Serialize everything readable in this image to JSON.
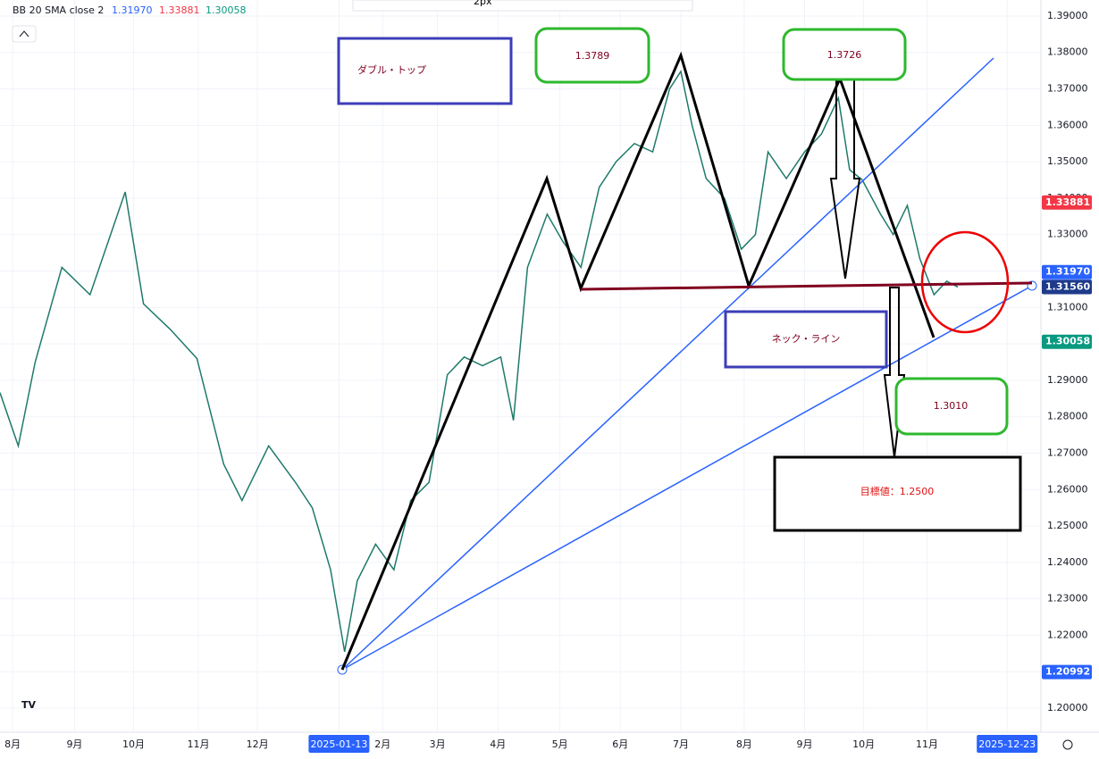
{
  "toolbar": {
    "width_label": "2px"
  },
  "indicator": {
    "name": "BB 20 SMA close 2",
    "middle": "1.31970",
    "upper": "1.33881",
    "lower": "1.30058"
  },
  "chart_data": {
    "type": "line",
    "series": [
      {
        "name": "USDCHF close",
        "color": "#1f7a6a",
        "x": [
          0,
          1.3,
          2.5,
          4.4,
          6.4,
          8.9,
          10.2,
          12.1,
          14,
          15.9,
          17.2,
          19.1,
          21,
          22.2,
          23.5,
          24.5,
          25.4,
          26.7,
          28,
          29.2,
          30.5,
          31.8,
          33,
          34.3,
          35.6,
          36.5,
          37.5,
          38.9,
          40,
          41.3,
          42.6,
          43.8,
          45.1,
          46.4,
          47.6,
          48.4,
          49.2,
          50.2,
          51.5,
          52.7,
          53.7,
          54.6,
          55.9,
          57.2,
          58.4,
          59.6,
          60.4,
          61.3,
          62.6,
          63.5,
          64.5,
          65.4,
          66.4,
          67.3,
          68.1
        ],
        "values": [
          1.2866,
          1.272,
          1.295,
          1.321,
          1.3135,
          1.3417,
          1.311,
          1.304,
          1.296,
          1.267,
          1.257,
          1.272,
          1.262,
          1.255,
          1.238,
          1.2155,
          1.235,
          1.245,
          1.238,
          1.257,
          1.262,
          1.2915,
          1.2964,
          1.294,
          1.2964,
          1.279,
          1.321,
          1.3356,
          1.3282,
          1.321,
          1.343,
          1.35,
          1.355,
          1.3527,
          1.37,
          1.3748,
          1.36,
          1.3454,
          1.34,
          1.326,
          1.33,
          1.3527,
          1.3454,
          1.3527,
          1.3576,
          1.3675,
          1.3478,
          1.345,
          1.3356,
          1.33,
          1.338,
          1.3233,
          1.3135,
          1.3172,
          1.3156
        ]
      }
    ],
    "xlim": [
      0,
      74
    ],
    "xticks": [
      {
        "value": 0.9,
        "label": "8月"
      },
      {
        "value": 5.3,
        "label": "9月"
      },
      {
        "value": 9.5,
        "label": "10月"
      },
      {
        "value": 14.1,
        "label": "11月"
      },
      {
        "value": 18.3,
        "label": "12月"
      },
      {
        "value": 24.1,
        "label": "2025-01-13"
      },
      {
        "value": 27.2,
        "label": "2月"
      },
      {
        "value": 31.1,
        "label": "3月"
      },
      {
        "value": 35.4,
        "label": "4月"
      },
      {
        "value": 39.8,
        "label": "5月"
      },
      {
        "value": 44.1,
        "label": "6月"
      },
      {
        "value": 48.4,
        "label": "7月"
      },
      {
        "value": 52.9,
        "label": "8月"
      },
      {
        "value": 57.2,
        "label": "9月"
      },
      {
        "value": 61.4,
        "label": "10月"
      },
      {
        "value": 65.9,
        "label": "11月"
      },
      {
        "value": 71.6,
        "label": "2025-12-23"
      }
    ],
    "ylim": [
      1.1934,
      1.3944
    ],
    "yticks": [
      {
        "value": 1.2,
        "label": "1.20000"
      },
      {
        "value": 1.21,
        "label": "1.21000"
      },
      {
        "value": 1.22,
        "label": "1.22000"
      },
      {
        "value": 1.23,
        "label": "1.23000"
      },
      {
        "value": 1.24,
        "label": "1.24000"
      },
      {
        "value": 1.25,
        "label": "1.25000"
      },
      {
        "value": 1.26,
        "label": "1.26000"
      },
      {
        "value": 1.27,
        "label": "1.27000"
      },
      {
        "value": 1.28,
        "label": "1.28000"
      },
      {
        "value": 1.29,
        "label": "1.29000"
      },
      {
        "value": 1.3,
        "label": "1.30000"
      },
      {
        "value": 1.31,
        "label": "1.31000"
      },
      {
        "value": 1.32,
        "label": "1.32000"
      },
      {
        "value": 1.33,
        "label": "1.33000"
      },
      {
        "value": 1.34,
        "label": "1.34000"
      },
      {
        "value": 1.35,
        "label": "1.35000"
      },
      {
        "value": 1.36,
        "label": "1.36000"
      },
      {
        "value": 1.37,
        "label": "1.37000"
      },
      {
        "value": 1.38,
        "label": "1.38000"
      },
      {
        "value": 1.39,
        "label": "1.39000"
      }
    ],
    "price_labels": [
      {
        "value": 1.33881,
        "color": "#f23645"
      },
      {
        "value": 1.3197,
        "label": "1.31970",
        "color": "#2962ff"
      },
      {
        "value": 1.31569,
        "color": "#2962ff"
      },
      {
        "value": 1.3156,
        "label": "1.31560",
        "color": "#1e3a8a"
      },
      {
        "value": 1.30058,
        "color": "#089981"
      },
      {
        "value": 1.20992,
        "color": "#2962ff"
      }
    ]
  },
  "annotations": {
    "pattern": "ダブル・トップ",
    "top1": "1.3789",
    "top2": "1.3726",
    "neckline": "ネック・ライン",
    "support": "1.3010",
    "target": "目標値：1.2500"
  }
}
